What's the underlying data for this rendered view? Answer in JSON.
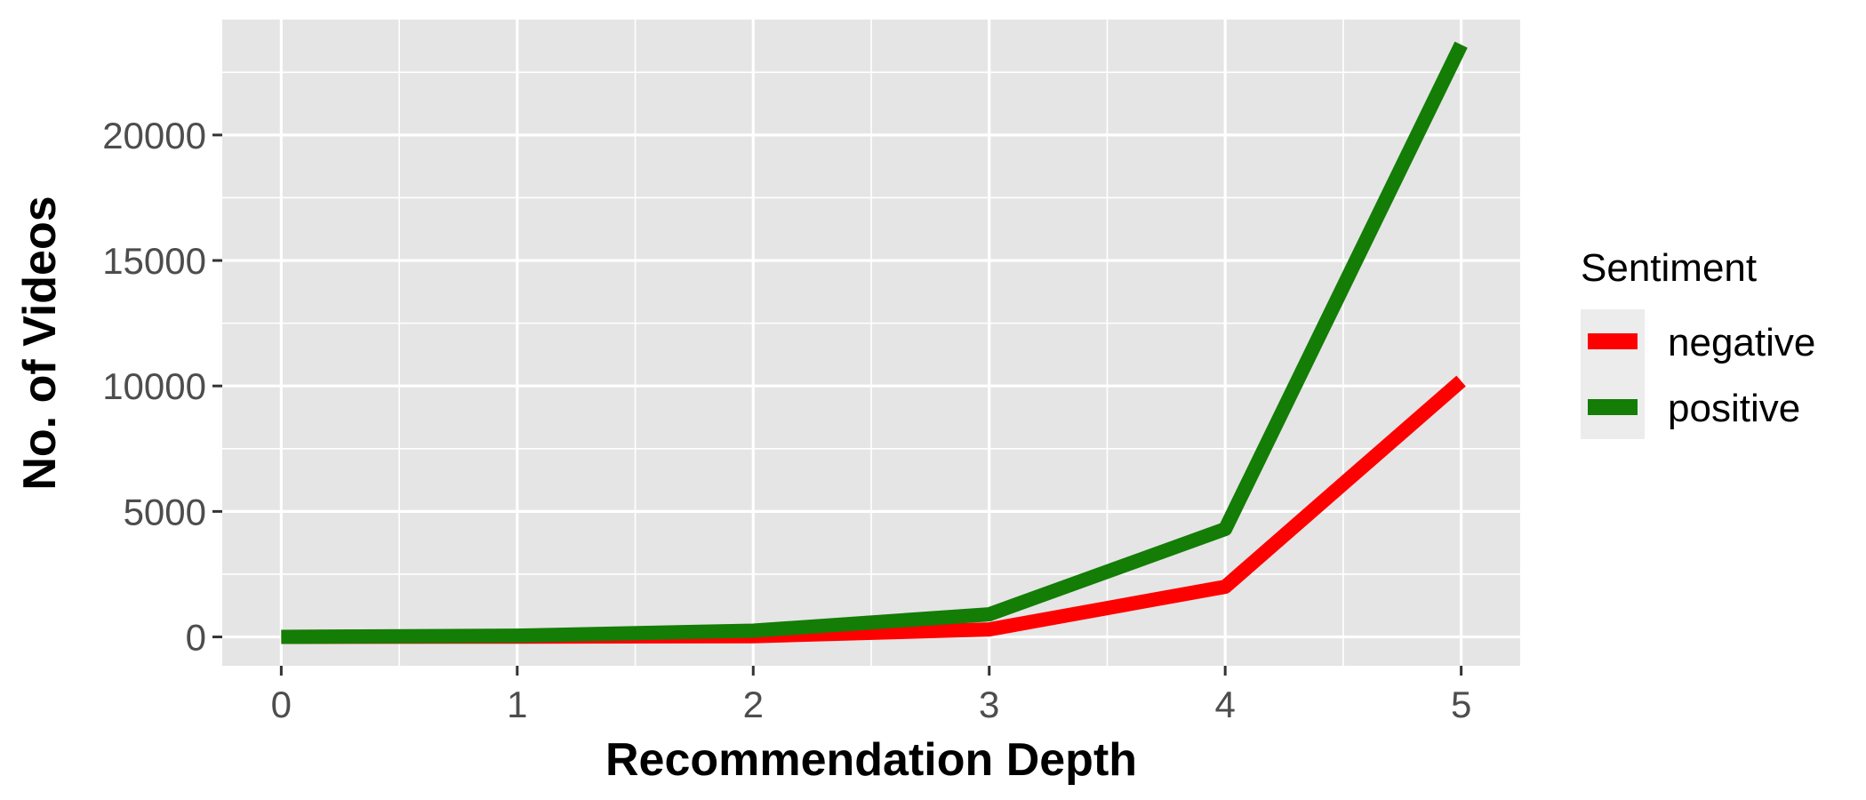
{
  "chart_data": {
    "type": "line",
    "xlabel": "Recommendation Depth",
    "ylabel": "No. of Videos",
    "x": [
      0,
      1,
      2,
      3,
      4,
      5
    ],
    "xlim": [
      -0.25,
      5.25
    ],
    "ylim": [
      -1150,
      24600
    ],
    "x_ticks": [
      0,
      1,
      2,
      3,
      4,
      5
    ],
    "x_minor_ticks": [
      0.5,
      1.5,
      2.5,
      3.5,
      4.5
    ],
    "y_ticks": [
      0,
      5000,
      10000,
      15000,
      20000
    ],
    "y_minor_ticks": [
      2500,
      7500,
      12500,
      17500,
      22500
    ],
    "grid": true,
    "legend": {
      "title": "Sentiment",
      "position": "right"
    },
    "colors": {
      "panel_background": "#e5e5e5",
      "grid": "#ffffff",
      "tick_text": "#4d4d4d",
      "tick_mark": "#333333"
    },
    "series": [
      {
        "name": "negative",
        "color": "#ff0000",
        "values": [
          0,
          10,
          30,
          300,
          2000,
          10200
        ]
      },
      {
        "name": "positive",
        "color": "#137d06",
        "values": [
          0,
          50,
          250,
          900,
          4300,
          23600
        ]
      }
    ]
  }
}
